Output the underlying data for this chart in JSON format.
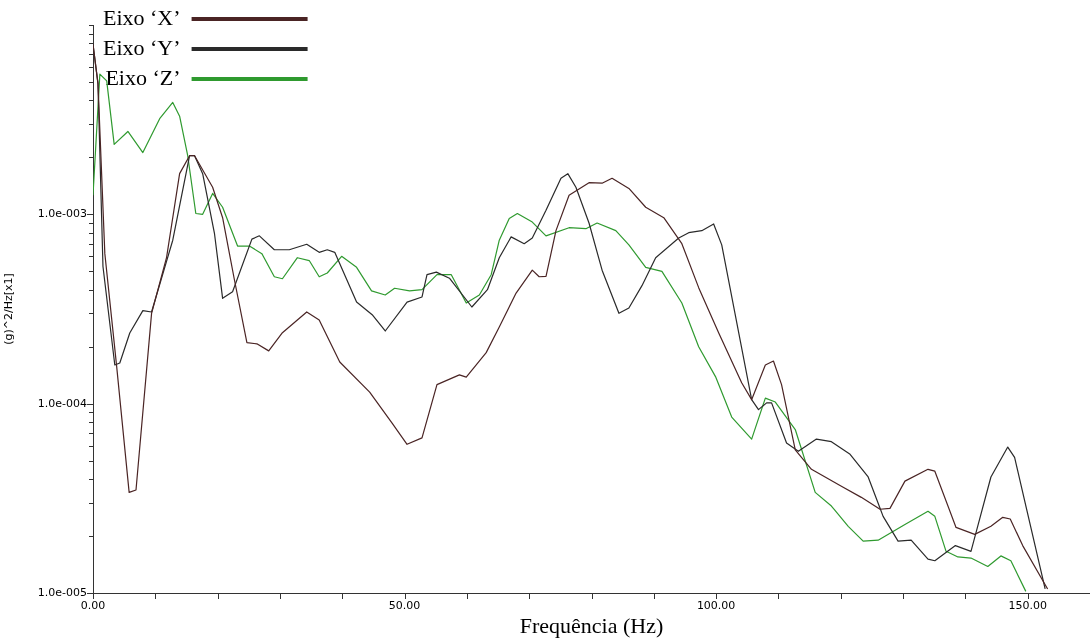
{
  "chart_data": {
    "type": "line",
    "xlabel": "Frequência (Hz)",
    "ylabel": "(g)^2/Hz[x1]",
    "log": "y",
    "grid": false,
    "legend": "top left",
    "marker": "none",
    "line_style": "solid",
    "xlim": [
      0,
      160
    ],
    "xticks": [
      {
        "value": 0,
        "label": "0.00"
      },
      {
        "value": 10,
        "label": null
      },
      {
        "value": 20,
        "label": null
      },
      {
        "value": 30,
        "label": null
      },
      {
        "value": 40,
        "label": null
      },
      {
        "value": 50,
        "label": "50.00"
      },
      {
        "value": 60,
        "label": null
      },
      {
        "value": 70,
        "label": null
      },
      {
        "value": 80,
        "label": null
      },
      {
        "value": 90,
        "label": null
      },
      {
        "value": 100,
        "label": "100.00"
      },
      {
        "value": 110,
        "label": null
      },
      {
        "value": 120,
        "label": null
      },
      {
        "value": 130,
        "label": null
      },
      {
        "value": 140,
        "label": null
      },
      {
        "value": 150,
        "label": "150.00"
      }
    ],
    "ylim": [
      1e-05,
      0.01
    ],
    "yticks": [
      {
        "value": 1e-05,
        "label": "1.0e-005"
      },
      {
        "value": 2e-05,
        "label": null
      },
      {
        "value": 3e-05,
        "label": null
      },
      {
        "value": 4e-05,
        "label": null
      },
      {
        "value": 5e-05,
        "label": null
      },
      {
        "value": 6e-05,
        "label": null
      },
      {
        "value": 7e-05,
        "label": null
      },
      {
        "value": 8e-05,
        "label": null
      },
      {
        "value": 9e-05,
        "label": null
      },
      {
        "value": 0.0001,
        "label": "1.0e-004"
      },
      {
        "value": 0.0002,
        "label": null
      },
      {
        "value": 0.0003,
        "label": null
      },
      {
        "value": 0.0004,
        "label": null
      },
      {
        "value": 0.0005,
        "label": null
      },
      {
        "value": 0.0006,
        "label": null
      },
      {
        "value": 0.0007,
        "label": null
      },
      {
        "value": 0.0008,
        "label": null
      },
      {
        "value": 0.0009,
        "label": null
      },
      {
        "value": 0.001,
        "label": "1.0e-003"
      },
      {
        "value": 0.002,
        "label": null
      },
      {
        "value": 0.003,
        "label": null
      },
      {
        "value": 0.004,
        "label": null
      },
      {
        "value": 0.005,
        "label": null
      },
      {
        "value": 0.006,
        "label": null
      },
      {
        "value": 0.007,
        "label": null
      },
      {
        "value": 0.008,
        "label": null
      },
      {
        "value": 0.009,
        "label": null
      },
      {
        "value": 0.01,
        "label": null
      }
    ],
    "series": [
      {
        "name": "Eixo ‘X’",
        "color": "#4a2424",
        "x": [
          0,
          0.8,
          1.9,
          3.8,
          5.8,
          6.9,
          9.4,
          11.8,
          13.9,
          15.5,
          16.3,
          19.2,
          20.8,
          22.7,
          24.7,
          26.3,
          28.2,
          30.4,
          34.3,
          36.3,
          39.6,
          44.4,
          48.0,
          50.4,
          52.8,
          55.2,
          58.8,
          59.9,
          63.1,
          65.2,
          67.9,
          70.5,
          71.6,
          72.7,
          74.3,
          76.4,
          79.6,
          81.7,
          83.3,
          86.0,
          88.7,
          91.6,
          94.5,
          97.2,
          100.4,
          104.1,
          105.7,
          107.9,
          109.2,
          110.5,
          112.7,
          115.3,
          120.1,
          123.3,
          126.3,
          127.9,
          130.3,
          134.0,
          135.1,
          138.5,
          141.5,
          144.1,
          146.0,
          147.2,
          149.2,
          153.2
        ],
        "values": [
          0.0079,
          0.0049,
          0.00062,
          0.000157,
          3.4e-05,
          3.5e-05,
          0.0003,
          0.00059,
          0.00164,
          0.00204,
          0.00204,
          0.00139,
          0.00096,
          0.00045,
          0.00021,
          0.000207,
          0.00019,
          0.000237,
          0.000305,
          0.000277,
          0.000166,
          0.000115,
          7.9e-05,
          6.1e-05,
          6.6e-05,
          0.000126,
          0.000142,
          0.000138,
          0.000186,
          0.000254,
          0.000384,
          0.000507,
          0.000468,
          0.00047,
          0.00082,
          0.00126,
          0.00147,
          0.00146,
          0.00155,
          0.00137,
          0.00109,
          0.00096,
          0.0007,
          0.00041,
          0.000237,
          0.000129,
          0.000105,
          0.00016,
          0.000168,
          0.000126,
          5.7e-05,
          4.5e-05,
          3.66e-05,
          3.2e-05,
          2.77e-05,
          2.8e-05,
          3.9e-05,
          4.5e-05,
          4.4e-05,
          2.22e-05,
          2.04e-05,
          2.25e-05,
          2.51e-05,
          2.46e-05,
          1.78e-05,
          1.05e-05
        ]
      },
      {
        "name": "Eixo ‘Y’",
        "color": "#2a2a2a",
        "x": [
          0,
          0.8,
          1.6,
          3.5,
          4.3,
          5.9,
          8.0,
          9.4,
          12.8,
          15.5,
          16.3,
          17.6,
          19.5,
          20.8,
          22.4,
          25.5,
          26.7,
          29.1,
          31.5,
          34.3,
          36.3,
          37.6,
          38.8,
          42.3,
          44.8,
          46.9,
          50.4,
          52.8,
          53.6,
          55.1,
          57.2,
          60.8,
          63.3,
          65.2,
          67.1,
          69.2,
          70.5,
          72.7,
          75.1,
          76.2,
          77.5,
          79.6,
          81.7,
          84.4,
          86.0,
          88.1,
          90.3,
          94.0,
          95.6,
          97.7,
          99.6,
          100.9,
          105.7,
          106.8,
          108.1,
          108.9,
          111.3,
          113.2,
          116.1,
          118.5,
          121.5,
          124.4,
          126.8,
          129.2,
          131.3,
          134.0,
          135.1,
          138.4,
          140.9,
          144.1,
          146.8,
          147.9,
          152.8
        ],
        "values": [
          0.0079,
          0.0049,
          0.00053,
          0.00016,
          0.000164,
          0.000236,
          0.00031,
          0.000305,
          0.00073,
          0.00204,
          0.00204,
          0.00164,
          0.00079,
          0.00036,
          0.00039,
          0.00074,
          0.00077,
          0.00065,
          0.00065,
          0.000695,
          0.00063,
          0.00065,
          0.00063,
          0.000344,
          0.000295,
          0.000242,
          0.000344,
          0.000366,
          0.00048,
          0.000495,
          0.00046,
          0.000324,
          0.0004,
          0.00059,
          0.00076,
          0.0007,
          0.00075,
          0.00105,
          0.00155,
          0.00164,
          0.00139,
          0.0009,
          0.000507,
          0.0003,
          0.00032,
          0.00042,
          0.00059,
          0.00075,
          0.0008,
          0.00082,
          0.00089,
          0.00069,
          0.000105,
          9.3e-05,
          0.000101,
          0.000101,
          6.2e-05,
          5.6e-05,
          6.5e-05,
          6.3e-05,
          5.4e-05,
          4.1e-05,
          2.54e-05,
          1.88e-05,
          1.9e-05,
          1.51e-05,
          1.48e-05,
          1.78e-05,
          1.66e-05,
          4.1e-05,
          5.9e-05,
          5.2e-05,
          1.05e-05
        ]
      },
      {
        "name": "Eixo ‘Z’",
        "color": "#2f9a2f",
        "x": [
          0,
          1.1,
          2.2,
          3.4,
          5.6,
          8.0,
          10.7,
          12.8,
          13.9,
          15.2,
          16.5,
          17.6,
          19.2,
          20.8,
          23.2,
          25.1,
          27.1,
          29.1,
          30.4,
          32.8,
          34.7,
          36.3,
          37.6,
          39.9,
          42.3,
          44.7,
          46.9,
          48.4,
          50.8,
          52.8,
          55.2,
          57.5,
          59.9,
          62.0,
          63.9,
          65.2,
          66.8,
          68.1,
          70.5,
          72.7,
          76.4,
          79.1,
          80.9,
          83.9,
          86.0,
          88.7,
          91.3,
          94.5,
          97.2,
          99.9,
          102.5,
          105.7,
          107.9,
          109.5,
          112.7,
          115.9,
          118.5,
          121.2,
          123.6,
          126.0,
          130.3,
          134.0,
          135.1,
          136.9,
          138.8,
          140.9,
          143.6,
          145.7,
          147.3,
          149.7
        ],
        "values": [
          0.00126,
          0.0055,
          0.00507,
          0.00234,
          0.00274,
          0.00212,
          0.0032,
          0.0039,
          0.0033,
          0.00204,
          0.00101,
          0.001,
          0.00129,
          0.00109,
          0.00068,
          0.00068,
          0.00062,
          0.000468,
          0.000457,
          0.00059,
          0.00057,
          0.000468,
          0.00049,
          0.0006,
          0.000525,
          0.000394,
          0.000375,
          0.000407,
          0.000394,
          0.0004,
          0.00048,
          0.00048,
          0.00034,
          0.000375,
          0.00048,
          0.00073,
          0.00095,
          0.00101,
          0.00091,
          0.00077,
          0.00085,
          0.00084,
          0.0009,
          0.00082,
          0.00069,
          0.000525,
          0.0005,
          0.00034,
          0.0002,
          0.000139,
          8.5e-05,
          6.5e-05,
          0.000107,
          0.000102,
          7.3e-05,
          3.4e-05,
          2.88e-05,
          2.25e-05,
          1.88e-05,
          1.9e-05,
          2.3e-05,
          2.7e-05,
          2.54e-05,
          1.66e-05,
          1.55e-05,
          1.53e-05,
          1.38e-05,
          1.57e-05,
          1.48e-05,
          1.02e-05
        ]
      }
    ]
  }
}
